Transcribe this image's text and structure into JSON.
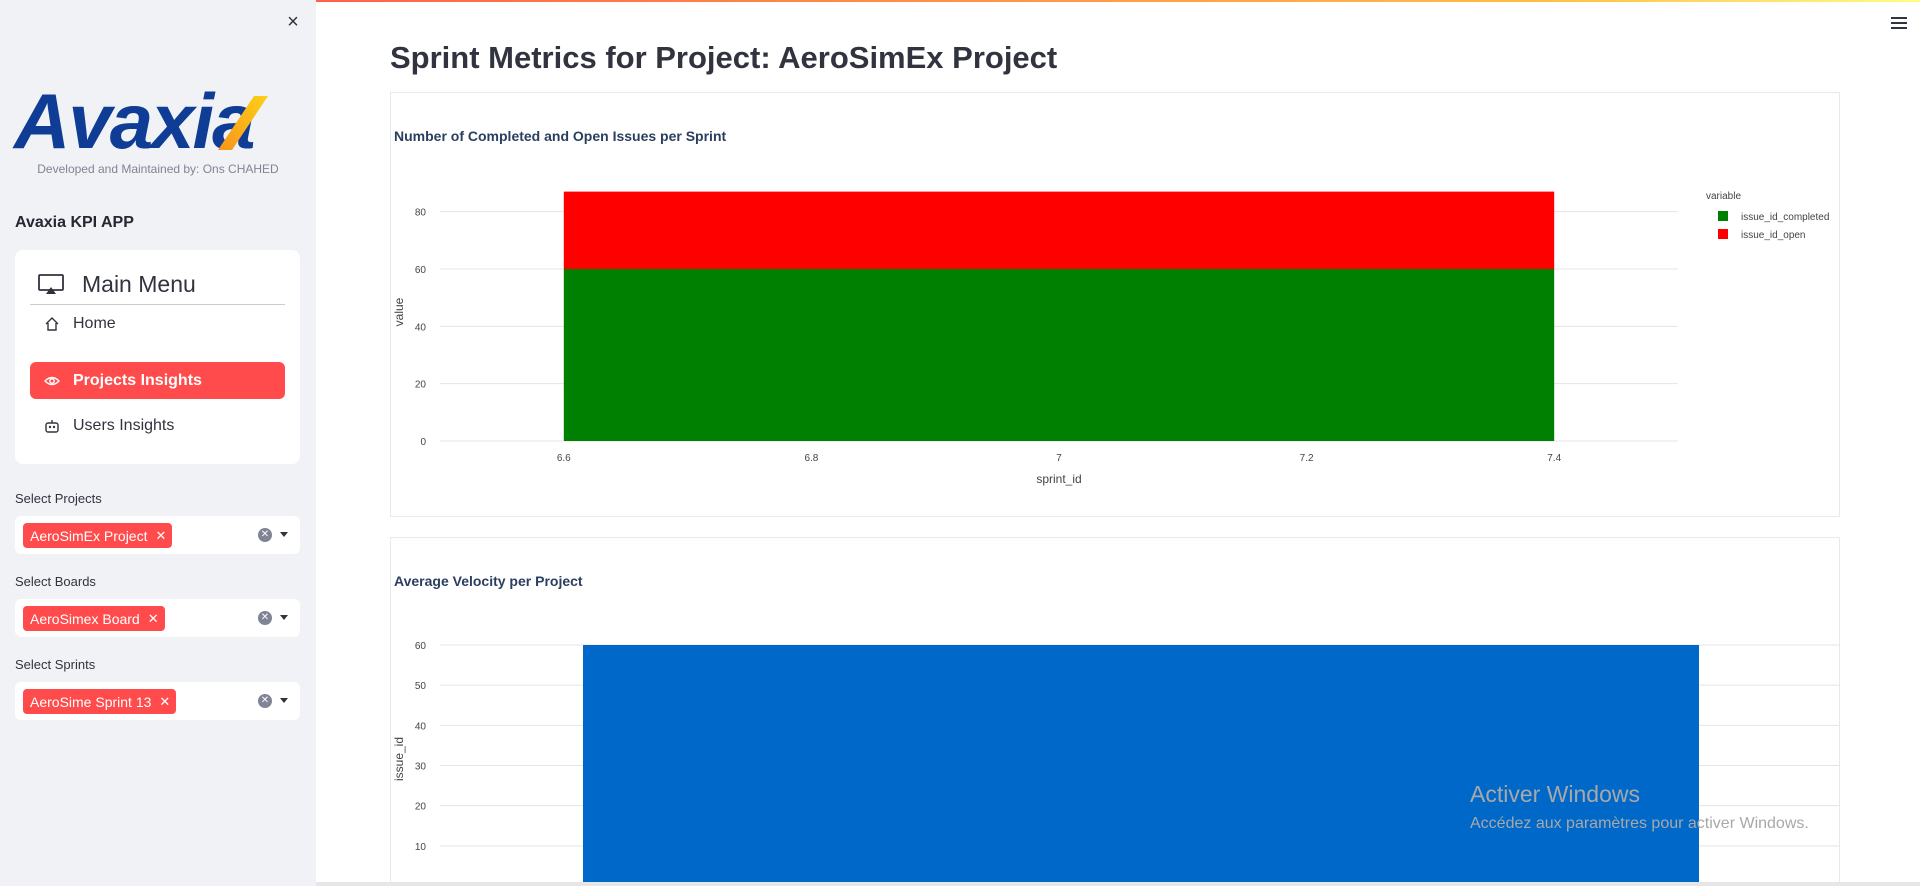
{
  "sidebar": {
    "close_icon": "close-icon",
    "logo_text": "Avaxia",
    "developer_note": "Developed and Maintained by: Ons CHAHED",
    "app_title": "Avaxia KPI APP",
    "menu": {
      "title": "Main Menu",
      "title_icon": "cast-icon",
      "items": [
        {
          "label": "Home",
          "icon": "house-icon",
          "active": false
        },
        {
          "label": "Projects Insights",
          "icon": "eye-icon",
          "active": true
        },
        {
          "label": "Users Insights",
          "icon": "robot-icon",
          "active": false
        }
      ]
    },
    "selects": [
      {
        "label": "Select Projects",
        "tag": "AeroSimEx Project"
      },
      {
        "label": "Select Boards",
        "tag": "AeroSimex Board"
      },
      {
        "label": "Select Sprints",
        "tag": "AeroSime Sprint 13"
      }
    ],
    "accent_color": "#ff4b4b"
  },
  "main": {
    "title": "Sprint Metrics for Project: AeroSimEx Project",
    "menu_icon": "hamburger-icon"
  },
  "watermark": {
    "line1": "Activer Windows",
    "line2": "Accédez aux paramètres pour activer Windows."
  },
  "chart_data": [
    {
      "type": "bar",
      "title": "Number of Completed and Open Issues per Sprint",
      "xlabel": "sprint_id",
      "ylabel": "value",
      "x_ticks": [
        "6.6",
        "6.8",
        "7",
        "7.2",
        "7.4"
      ],
      "y_ticks": [
        "0",
        "20",
        "40",
        "60",
        "80"
      ],
      "xlim": [
        6.5,
        7.5
      ],
      "ylim": [
        0,
        90
      ],
      "legend_title": "variable",
      "legend_position": "top-right",
      "stacked": true,
      "bar_x": 7,
      "bar_width": 0.8,
      "series": [
        {
          "name": "issue_id_completed",
          "color": "#008000",
          "values": [
            60
          ]
        },
        {
          "name": "issue_id_open",
          "color": "#ff0000",
          "values": [
            27
          ]
        }
      ]
    },
    {
      "type": "bar",
      "title": "Average Velocity per Project",
      "xlabel": "",
      "ylabel": "issue_id",
      "y_ticks": [
        "10",
        "20",
        "30",
        "40",
        "50",
        "60"
      ],
      "ylim": [
        0,
        60
      ],
      "series": [
        {
          "color": "#0068c9",
          "values": [
            60
          ]
        }
      ]
    }
  ]
}
